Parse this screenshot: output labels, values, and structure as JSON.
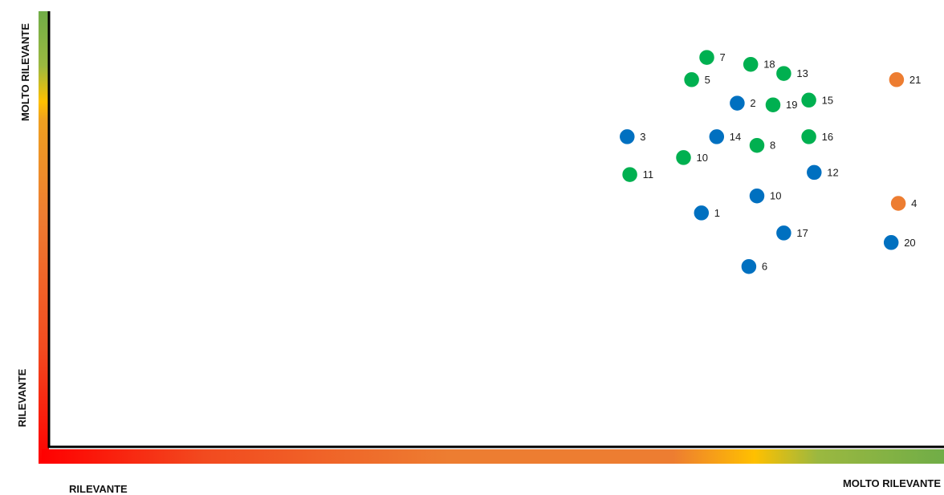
{
  "chart_data": {
    "type": "scatter",
    "title": "",
    "x_axis": {
      "low_label": "RILEVANTE",
      "high_label": "MOLTO RILEVANTE"
    },
    "y_axis": {
      "low_label": "RILEVANTE",
      "high_label": "MOLTO RILEVANTE"
    },
    "xlim": [
      0,
      100
    ],
    "ylim": [
      0,
      100
    ],
    "grid": false,
    "colors": {
      "blue": "#0070C0",
      "green": "#00B050",
      "orange": "#ED7D31"
    },
    "axis_gradient": [
      "#FF0000",
      "#ED7D31",
      "#FFC000",
      "#70AD47"
    ],
    "points": [
      {
        "label": "7",
        "x": 73.5,
        "y": 89.4,
        "color": "green"
      },
      {
        "label": "18",
        "x": 78.4,
        "y": 87.8,
        "color": "green"
      },
      {
        "label": "13",
        "x": 82.1,
        "y": 85.7,
        "color": "green"
      },
      {
        "label": "5",
        "x": 71.8,
        "y": 84.3,
        "color": "green"
      },
      {
        "label": "21",
        "x": 94.7,
        "y": 84.3,
        "color": "orange"
      },
      {
        "label": "15",
        "x": 84.9,
        "y": 79.6,
        "color": "green"
      },
      {
        "label": "2",
        "x": 76.9,
        "y": 78.9,
        "color": "blue"
      },
      {
        "label": "19",
        "x": 80.9,
        "y": 78.5,
        "color": "green"
      },
      {
        "label": "3",
        "x": 64.6,
        "y": 71.2,
        "color": "blue"
      },
      {
        "label": "14",
        "x": 74.6,
        "y": 71.2,
        "color": "blue"
      },
      {
        "label": "16",
        "x": 84.9,
        "y": 71.2,
        "color": "green"
      },
      {
        "label": "8",
        "x": 79.1,
        "y": 69.2,
        "color": "green"
      },
      {
        "label": "10",
        "x": 70.9,
        "y": 66.4,
        "color": "green"
      },
      {
        "label": "11",
        "x": 64.9,
        "y": 62.5,
        "color": "green"
      },
      {
        "label": "12",
        "x": 85.5,
        "y": 63.0,
        "color": "blue"
      },
      {
        "label": "10",
        "x": 79.1,
        "y": 57.6,
        "color": "blue"
      },
      {
        "label": "4",
        "x": 94.9,
        "y": 55.9,
        "color": "orange"
      },
      {
        "label": "1",
        "x": 72.9,
        "y": 53.7,
        "color": "blue"
      },
      {
        "label": "17",
        "x": 82.1,
        "y": 49.1,
        "color": "blue"
      },
      {
        "label": "20",
        "x": 94.1,
        "y": 46.9,
        "color": "blue"
      },
      {
        "label": "6",
        "x": 78.2,
        "y": 41.4,
        "color": "blue"
      }
    ]
  }
}
